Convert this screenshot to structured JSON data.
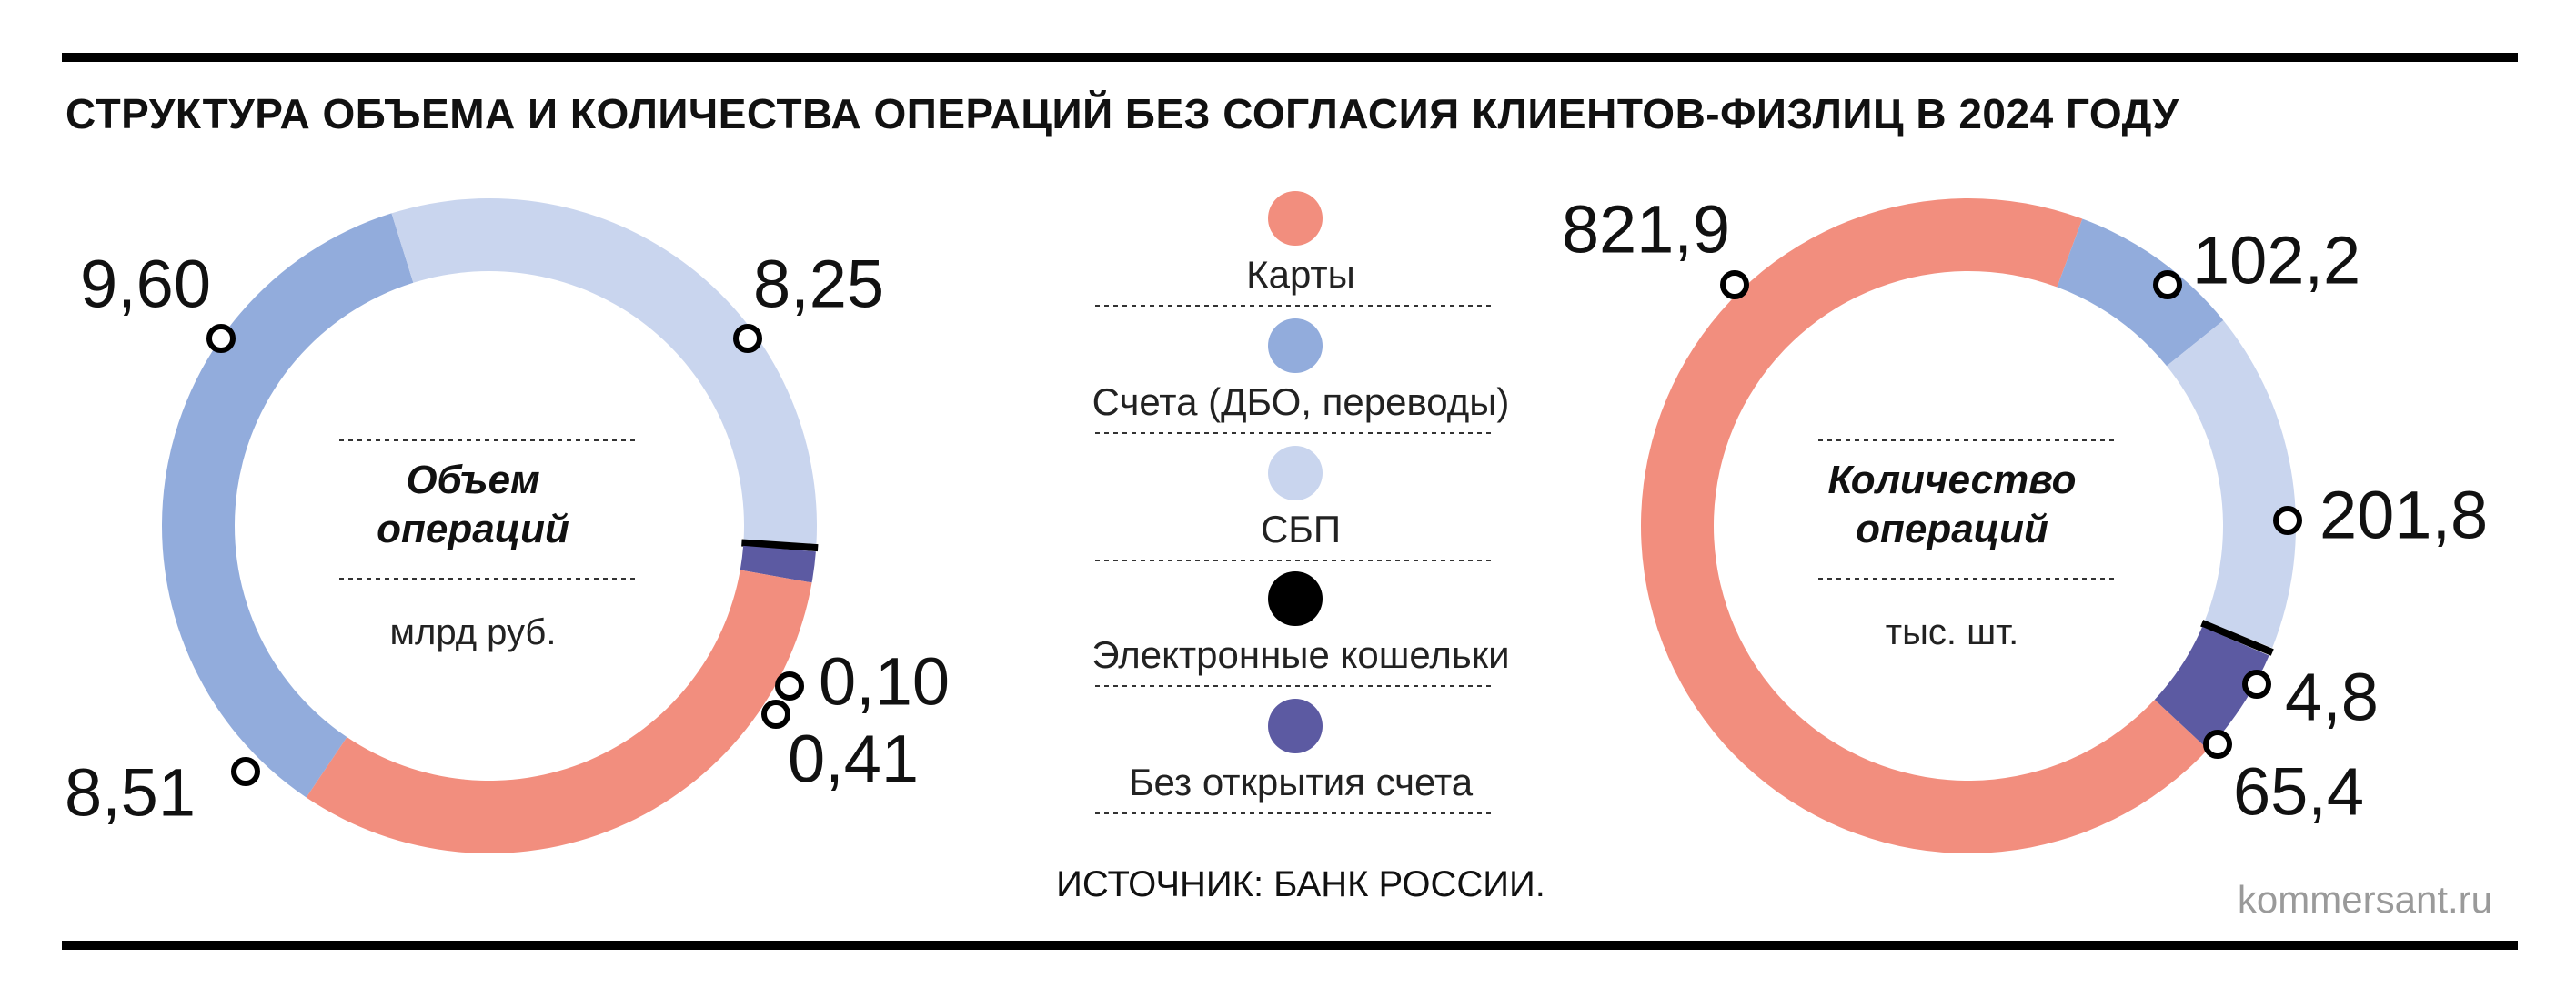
{
  "title": "СТРУКТУРА ОБЪЕМА И КОЛИЧЕСТВА ОПЕРАЦИЙ БЕЗ СОГЛАСИЯ КЛИЕНТОВ-ФИЗЛИЦ В 2024 ГОДУ",
  "source": "ИСТОЧНИК: БАНК РОССИИ.",
  "brand": "kommersant.ru",
  "legend": [
    {
      "label": "Карты",
      "color": "#f28e7e"
    },
    {
      "label": "Счета (ДБО, переводы)",
      "color": "#92acdc"
    },
    {
      "label": "СБП",
      "color": "#c9d5ee"
    },
    {
      "label": "Электронные кошельки",
      "color": "#000000"
    },
    {
      "label": "Без открытия счета",
      "color": "#5c5aa2"
    }
  ],
  "chart_data": [
    {
      "type": "pie",
      "donut": true,
      "center_title": [
        "Объем",
        "операций"
      ],
      "unit": "млрд руб.",
      "slices": [
        {
          "category": "Счета (ДБО, переводы)",
          "value": 9.6,
          "label": "9,60"
        },
        {
          "category": "СБП",
          "value": 8.25,
          "label": "8,25"
        },
        {
          "category": "Электронные кошельки",
          "value": 0.1,
          "label": "0,10"
        },
        {
          "category": "Без открытия счета",
          "value": 0.41,
          "label": "0,41"
        },
        {
          "category": "Карты",
          "value": 8.51,
          "label": "8,51"
        }
      ]
    },
    {
      "type": "pie",
      "donut": true,
      "center_title": [
        "Количество",
        "операций"
      ],
      "unit": "тыс. шт.",
      "slices": [
        {
          "category": "Карты",
          "value": 821.9,
          "label": "821,9"
        },
        {
          "category": "Счета (ДБО, переводы)",
          "value": 102.2,
          "label": "102,2"
        },
        {
          "category": "СБП",
          "value": 201.8,
          "label": "201,8"
        },
        {
          "category": "Электронные кошельки",
          "value": 4.8,
          "label": "4,8"
        },
        {
          "category": "Без открытия счета",
          "value": 65.4,
          "label": "65,4"
        }
      ]
    }
  ]
}
